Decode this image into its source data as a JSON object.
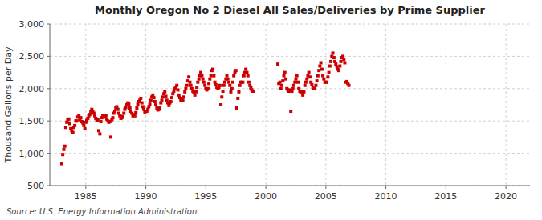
{
  "chart_data": {
    "type": "scatter",
    "title": "Monthly Oregon No 2 Diesel All Sales/Deliveries by Prime Supplier",
    "ylabel": "Thousand Gallons per Day",
    "annotations": [
      "Source: U.S. Energy Information Administration"
    ],
    "color": "#cc0000",
    "marker": "square",
    "grid": true,
    "xlim": [
      1982,
      2022
    ],
    "ylim": [
      500,
      3000
    ],
    "xticks": [
      1985,
      1990,
      1995,
      2000,
      2005,
      2010,
      2015,
      2020
    ],
    "yticks": [
      500,
      {
        "value": 1000,
        "label": "1,000"
      },
      {
        "value": 1500,
        "label": "1,500"
      },
      {
        "value": 2000,
        "label": "2,000"
      },
      {
        "value": 2500,
        "label": "2,500"
      },
      {
        "value": 3000,
        "label": "3,000"
      }
    ],
    "x": [
      1983.0,
      1983.08,
      1983.17,
      1983.25,
      1983.33,
      1983.42,
      1983.5,
      1983.58,
      1983.67,
      1983.75,
      1983.83,
      1983.92,
      1984.0,
      1984.08,
      1984.17,
      1984.25,
      1984.33,
      1984.42,
      1984.5,
      1984.58,
      1984.67,
      1984.75,
      1984.83,
      1984.92,
      1985.0,
      1985.08,
      1985.17,
      1985.25,
      1985.33,
      1985.42,
      1985.5,
      1985.58,
      1985.67,
      1985.75,
      1985.83,
      1985.92,
      1986.0,
      1986.08,
      1986.17,
      1986.25,
      1986.33,
      1986.42,
      1986.5,
      1986.58,
      1986.67,
      1986.75,
      1986.83,
      1986.92,
      1987.0,
      1987.08,
      1987.17,
      1987.25,
      1987.33,
      1987.42,
      1987.5,
      1987.58,
      1987.67,
      1987.75,
      1987.83,
      1987.92,
      1988.0,
      1988.08,
      1988.17,
      1988.25,
      1988.33,
      1988.42,
      1988.5,
      1988.58,
      1988.67,
      1988.75,
      1988.83,
      1988.92,
      1989.0,
      1989.08,
      1989.17,
      1989.25,
      1989.33,
      1989.42,
      1989.5,
      1989.58,
      1989.67,
      1989.75,
      1989.83,
      1989.92,
      1990.0,
      1990.08,
      1990.17,
      1990.25,
      1990.33,
      1990.42,
      1990.5,
      1990.58,
      1990.67,
      1990.75,
      1990.83,
      1990.92,
      1991.0,
      1991.08,
      1991.17,
      1991.25,
      1991.33,
      1991.42,
      1991.5,
      1991.58,
      1991.67,
      1991.75,
      1991.83,
      1991.92,
      1992.0,
      1992.08,
      1992.17,
      1992.25,
      1992.33,
      1992.42,
      1992.5,
      1992.58,
      1992.67,
      1992.75,
      1992.83,
      1992.92,
      1993.0,
      1993.08,
      1993.17,
      1993.25,
      1993.33,
      1993.42,
      1993.5,
      1993.58,
      1993.67,
      1993.75,
      1993.83,
      1993.92,
      1994.0,
      1994.08,
      1994.17,
      1994.25,
      1994.33,
      1994.42,
      1994.5,
      1994.58,
      1994.67,
      1994.75,
      1994.83,
      1994.92,
      1995.0,
      1995.08,
      1995.17,
      1995.25,
      1995.33,
      1995.42,
      1995.5,
      1995.58,
      1995.67,
      1995.75,
      1995.83,
      1995.92,
      1996.0,
      1996.08,
      1996.17,
      1996.25,
      1996.33,
      1996.42,
      1996.5,
      1996.58,
      1996.67,
      1996.75,
      1996.83,
      1996.92,
      1997.0,
      1997.08,
      1997.17,
      1997.25,
      1997.33,
      1997.42,
      1997.5,
      1997.58,
      1997.67,
      1997.75,
      1997.83,
      1997.92,
      1998.0,
      1998.08,
      1998.17,
      1998.25,
      1998.33,
      1998.42,
      1998.5,
      1998.58,
      1998.67,
      1998.75,
      1998.83,
      1998.92,
      2001.0,
      2001.08,
      2001.17,
      2001.25,
      2001.33,
      2001.42,
      2001.5,
      2001.58,
      2001.67,
      2001.75,
      2001.83,
      2001.92,
      2002.0,
      2002.08,
      2002.17,
      2002.25,
      2002.33,
      2002.42,
      2002.5,
      2002.58,
      2002.67,
      2002.75,
      2002.83,
      2002.92,
      2003.0,
      2003.08,
      2003.17,
      2003.25,
      2003.33,
      2003.42,
      2003.5,
      2003.58,
      2003.67,
      2003.75,
      2003.83,
      2003.92,
      2004.0,
      2004.08,
      2004.17,
      2004.25,
      2004.33,
      2004.42,
      2004.5,
      2004.58,
      2004.67,
      2004.75,
      2004.83,
      2004.92,
      2005.0,
      2005.08,
      2005.17,
      2005.25,
      2005.33,
      2005.42,
      2005.5,
      2005.58,
      2005.67,
      2005.75,
      2005.83,
      2005.92,
      2006.0,
      2006.08,
      2006.17,
      2006.25,
      2006.33,
      2006.42,
      2006.5,
      2006.58,
      2006.67,
      2006.75,
      2006.83,
      2006.92
    ],
    "values": [
      840,
      980,
      1060,
      1110,
      1400,
      1480,
      1520,
      1530,
      1460,
      1380,
      1350,
      1320,
      1400,
      1430,
      1500,
      1500,
      1560,
      1580,
      1520,
      1550,
      1490,
      1470,
      1430,
      1380,
      1480,
      1510,
      1540,
      1580,
      1600,
      1640,
      1680,
      1650,
      1620,
      1580,
      1540,
      1510,
      1520,
      1350,
      1300,
      1490,
      1550,
      1580,
      1570,
      1560,
      1580,
      1530,
      1500,
      1480,
      1490,
      1250,
      1520,
      1550,
      1620,
      1650,
      1700,
      1720,
      1680,
      1620,
      1580,
      1540,
      1550,
      1570,
      1620,
      1680,
      1710,
      1750,
      1780,
      1760,
      1700,
      1650,
      1620,
      1580,
      1600,
      1580,
      1630,
      1700,
      1760,
      1800,
      1820,
      1850,
      1780,
      1720,
      1680,
      1640,
      1650,
      1650,
      1680,
      1720,
      1760,
      1820,
      1870,
      1900,
      1860,
      1800,
      1750,
      1700,
      1670,
      1680,
      1700,
      1780,
      1820,
      1870,
      1920,
      1950,
      1880,
      1820,
      1780,
      1740,
      1780,
      1800,
      1860,
      1920,
      1960,
      2000,
      2020,
      2050,
      1980,
      1900,
      1860,
      1820,
      1850,
      1820,
      1870,
      1950,
      2000,
      2050,
      2120,
      2180,
      2100,
      2050,
      2000,
      1960,
      1940,
      1900,
      1950,
      2020,
      2100,
      2150,
      2200,
      2250,
      2200,
      2150,
      2100,
      2050,
      2000,
      1980,
      2000,
      2080,
      2150,
      2200,
      2280,
      2300,
      2200,
      2100,
      2060,
      2020,
      2000,
      2020,
      2050,
      1750,
      1870,
      1960,
      2050,
      2100,
      2150,
      2200,
      2150,
      2100,
      2050,
      1950,
      2000,
      2100,
      2200,
      2250,
      2280,
      1700,
      1850,
      1950,
      2050,
      2100,
      2100,
      2100,
      2200,
      2250,
      2300,
      2250,
      2200,
      2100,
      2050,
      2010,
      1980,
      1960,
      2380,
      2080,
      2100,
      2000,
      2050,
      2120,
      2200,
      2250,
      2150,
      2000,
      1980,
      1960,
      1980,
      1650,
      1960,
      2000,
      2050,
      2100,
      2150,
      2200,
      2100,
      2000,
      1960,
      1940,
      1950,
      1900,
      1950,
      2050,
      2100,
      2150,
      2200,
      2250,
      2180,
      2100,
      2060,
      2020,
      2000,
      2000,
      2050,
      2120,
      2200,
      2280,
      2350,
      2400,
      2300,
      2200,
      2150,
      2100,
      2100,
      2100,
      2180,
      2250,
      2350,
      2420,
      2500,
      2550,
      2480,
      2420,
      2380,
      2340,
      2300,
      2280,
      2350,
      2420,
      2480,
      2500,
      2450,
      2400,
      2100,
      2110,
      2080,
      2050
    ]
  }
}
